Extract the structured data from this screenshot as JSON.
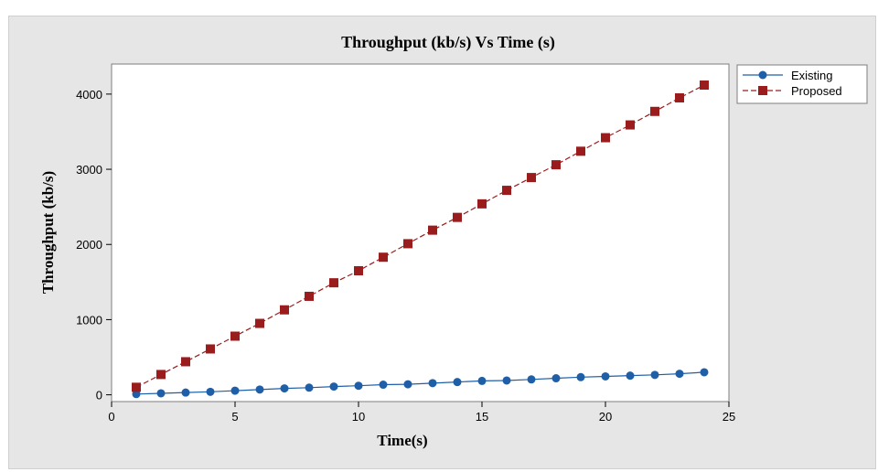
{
  "chart_data": {
    "type": "line",
    "title": "Throughput (kb/s) Vs Time (s)",
    "xlabel": "Time(s)",
    "ylabel": "Throughput (kb/s)",
    "xlim": [
      0,
      25
    ],
    "ylim": [
      -90,
      4400
    ],
    "xticks": [
      0,
      5,
      10,
      15,
      20,
      25
    ],
    "yticks": [
      0,
      1000,
      2000,
      3000,
      4000
    ],
    "xtick_labels": [
      "0",
      "5",
      "10",
      "15",
      "20",
      "25"
    ],
    "ytick_labels": [
      "0",
      "1000",
      "2000",
      "3000",
      "4000"
    ],
    "grid": false,
    "legend_position": "outside-top-right",
    "x": [
      1,
      2,
      3,
      4,
      5,
      6,
      7,
      8,
      9,
      10,
      11,
      12,
      13,
      14,
      15,
      16,
      17,
      18,
      19,
      20,
      21,
      22,
      23,
      24
    ],
    "series": [
      {
        "name": "Existing",
        "color": "#1f5fa8",
        "marker": "circle",
        "line_style": "solid",
        "values": [
          10,
          20,
          30,
          40,
          55,
          70,
          85,
          95,
          110,
          120,
          135,
          140,
          155,
          170,
          185,
          190,
          205,
          220,
          235,
          245,
          255,
          265,
          280,
          300
        ]
      },
      {
        "name": "Proposed",
        "color": "#9b1c1c",
        "marker": "square",
        "line_style": "dashed",
        "values": [
          100,
          270,
          440,
          610,
          780,
          950,
          1130,
          1310,
          1490,
          1650,
          1830,
          2010,
          2190,
          2360,
          2540,
          2720,
          2890,
          3060,
          3240,
          3420,
          3590,
          3770,
          3950,
          4120
        ]
      }
    ]
  }
}
